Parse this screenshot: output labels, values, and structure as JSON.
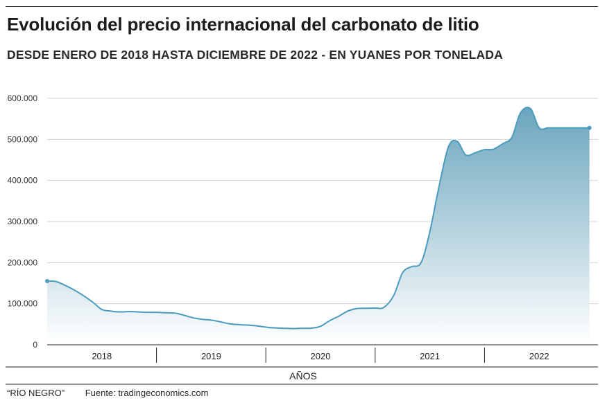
{
  "title": "Evolución del precio internacional del carbonato de litio",
  "subtitle": "DESDE ENERO DE 2018 HASTA DICIEMBRE DE 2022 - EN YUANES POR TONELADA",
  "footer": {
    "publisher": "“RÍO NEGRO”",
    "source": "Fuente: tradingeconomics.com"
  },
  "colors": {
    "line": "#4a9bbd",
    "fill_top": "#6aa5bd",
    "fill_bottom": "#ffffff",
    "grid": "#d6d6d6",
    "axis": "#222222"
  },
  "chart_data": {
    "type": "area",
    "title": "Evolución del precio internacional del carbonato de litio",
    "subtitle": "DESDE ENERO DE 2018 HASTA DICIEMBRE DE 2022 - EN YUANES POR TONELADA",
    "xlabel": "AÑOS",
    "ylabel": "",
    "xlim": [
      2018.0,
      2023.0
    ],
    "ylim": [
      0,
      600000
    ],
    "yticks": [
      0,
      100000,
      200000,
      300000,
      400000,
      500000,
      600000
    ],
    "ytick_labels": [
      "0",
      "100.000",
      "200.000",
      "300.000",
      "400.000",
      "500.000",
      "600.000"
    ],
    "year_labels": [
      "2018",
      "2019",
      "2020",
      "2021",
      "2022"
    ],
    "grid": true,
    "x": [
      2018.0,
      2018.08,
      2018.17,
      2018.25,
      2018.33,
      2018.42,
      2018.5,
      2018.58,
      2018.67,
      2018.75,
      2018.83,
      2018.92,
      2019.0,
      2019.08,
      2019.17,
      2019.25,
      2019.33,
      2019.42,
      2019.5,
      2019.58,
      2019.67,
      2019.75,
      2019.83,
      2019.92,
      2020.0,
      2020.08,
      2020.17,
      2020.25,
      2020.33,
      2020.42,
      2020.5,
      2020.58,
      2020.67,
      2020.75,
      2020.83,
      2020.92,
      2021.0,
      2021.08,
      2021.17,
      2021.25,
      2021.33,
      2021.42,
      2021.5,
      2021.58,
      2021.67,
      2021.75,
      2021.83,
      2021.92,
      2022.0,
      2022.08,
      2022.17,
      2022.25,
      2022.33,
      2022.42,
      2022.5,
      2022.58,
      2022.67,
      2022.75,
      2022.83,
      2022.92,
      2023.0
    ],
    "values": [
      155000,
      154000,
      144000,
      133000,
      120000,
      103000,
      86000,
      82000,
      80000,
      81000,
      80000,
      79000,
      79000,
      78000,
      77000,
      72000,
      66000,
      62000,
      60000,
      56000,
      51000,
      49000,
      48000,
      46000,
      43000,
      41000,
      40000,
      39500,
      40000,
      40500,
      45000,
      58000,
      70000,
      82000,
      88000,
      89000,
      89500,
      91000,
      120000,
      175000,
      190000,
      200000,
      275000,
      380000,
      482000,
      495000,
      462000,
      468000,
      475000,
      476000,
      490000,
      505000,
      565000,
      575000,
      528000,
      528000,
      528000,
      528000,
      528000,
      528000,
      528000
    ],
    "series_end_x": 2022.96
  }
}
